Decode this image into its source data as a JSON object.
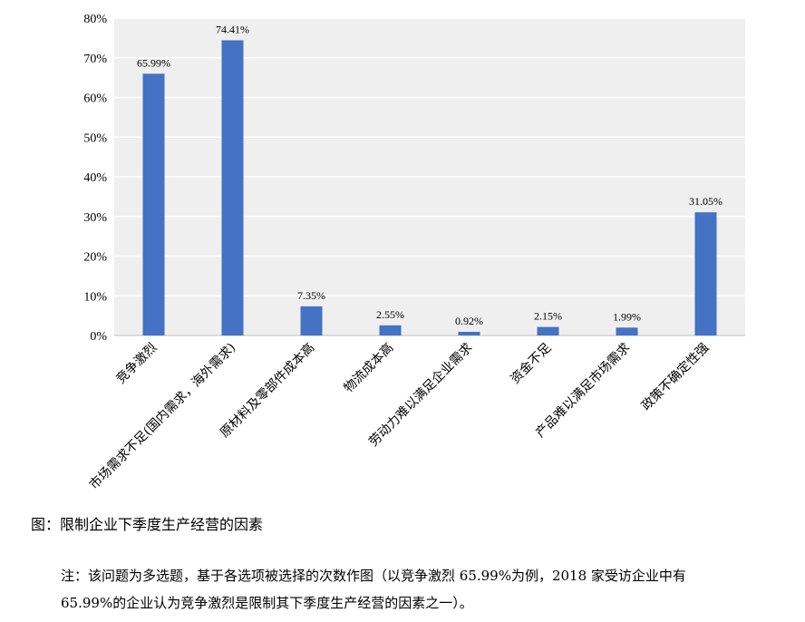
{
  "chart_data": {
    "type": "bar",
    "categories": [
      "竞争激烈",
      "市场需求不足(国内需求，海外需求)",
      "原材料及零部件成本高",
      "物流成本高",
      "劳动力难以满足企业需求",
      "资金不足",
      "产品难以满足市场需求",
      "政策不确定性强"
    ],
    "values": [
      65.99,
      74.41,
      7.35,
      2.55,
      0.92,
      2.15,
      1.99,
      31.05
    ],
    "value_labels": [
      "65.99%",
      "74.41%",
      "7.35%",
      "2.55%",
      "0.92%",
      "2.15%",
      "1.99%",
      "31.05%"
    ],
    "ylim": [
      0,
      80
    ],
    "yticks": [
      "0%",
      "10%",
      "20%",
      "30%",
      "40%",
      "50%",
      "60%",
      "70%",
      "80%"
    ],
    "grid": true,
    "bar_color": "#4472C4",
    "plot_background": "#EFEFEF"
  },
  "caption": "图：限制企业下季度生产经营的因素",
  "note_line1": "注：该问题为多选题，基于各选项被选择的次数作图（以竞争激烈 65.99%为例，2018 家受访企业中有",
  "note_line2": "65.99%的企业认为竞争激烈是限制其下季度生产经营的因素之一）。"
}
